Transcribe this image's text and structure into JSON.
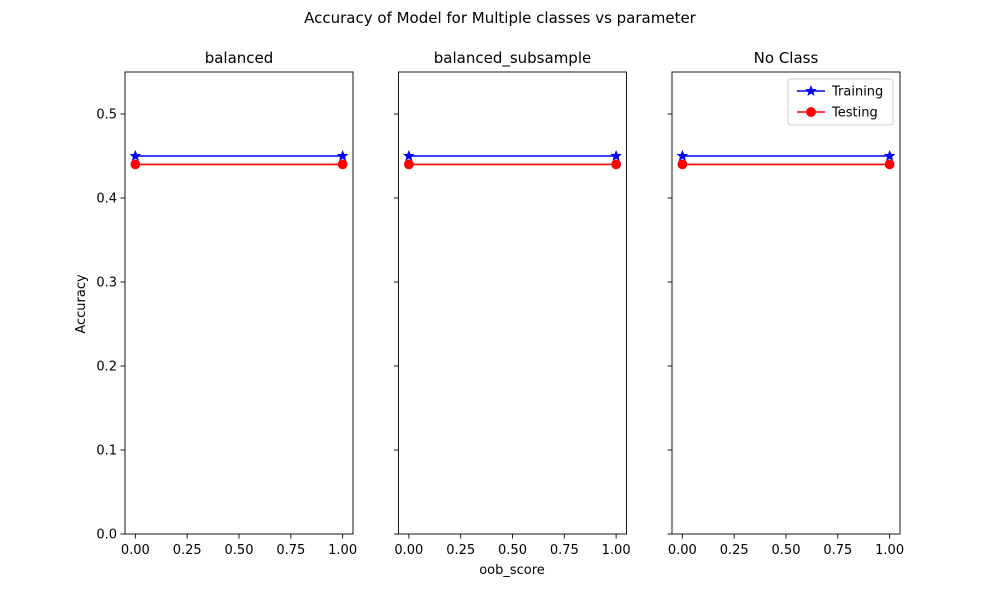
{
  "chart_data": {
    "type": "line",
    "title": "Accuracy of Model for Multiple classes vs parameter",
    "xlabel": "oob_score",
    "ylabel": "Accuracy",
    "xlim": [
      -0.05,
      1.05
    ],
    "ylim": [
      0,
      0.55
    ],
    "xticks": [
      0.0,
      0.25,
      0.5,
      0.75,
      1.0
    ],
    "xtick_labels": [
      "0.00",
      "0.25",
      "0.50",
      "0.75",
      "1.00"
    ],
    "yticks": [
      0.0,
      0.1,
      0.2,
      0.3,
      0.4,
      0.5
    ],
    "ytick_labels": [
      "0.0",
      "0.1",
      "0.2",
      "0.3",
      "0.4",
      "0.5"
    ],
    "sharey": true,
    "grid": false,
    "legend": {
      "placement": "top-right",
      "panel": 2
    },
    "panels": [
      {
        "title": "balanced",
        "series": [
          {
            "name": "Training",
            "color": "#0000ff",
            "marker": "star",
            "x": [
              0,
              1
            ],
            "y": [
              0.45,
              0.45
            ]
          },
          {
            "name": "Testing",
            "color": "#ff0000",
            "marker": "circle",
            "x": [
              0,
              1
            ],
            "y": [
              0.44,
              0.44
            ]
          }
        ]
      },
      {
        "title": "balanced_subsample",
        "series": [
          {
            "name": "Training",
            "color": "#0000ff",
            "marker": "star",
            "x": [
              0,
              1
            ],
            "y": [
              0.45,
              0.45
            ]
          },
          {
            "name": "Testing",
            "color": "#ff0000",
            "marker": "circle",
            "x": [
              0,
              1
            ],
            "y": [
              0.44,
              0.44
            ]
          }
        ]
      },
      {
        "title": "No Class",
        "series": [
          {
            "name": "Training",
            "color": "#0000ff",
            "marker": "star",
            "x": [
              0,
              1
            ],
            "y": [
              0.45,
              0.45
            ]
          },
          {
            "name": "Testing",
            "color": "#ff0000",
            "marker": "circle",
            "x": [
              0,
              1
            ],
            "y": [
              0.44,
              0.44
            ]
          }
        ]
      }
    ]
  }
}
